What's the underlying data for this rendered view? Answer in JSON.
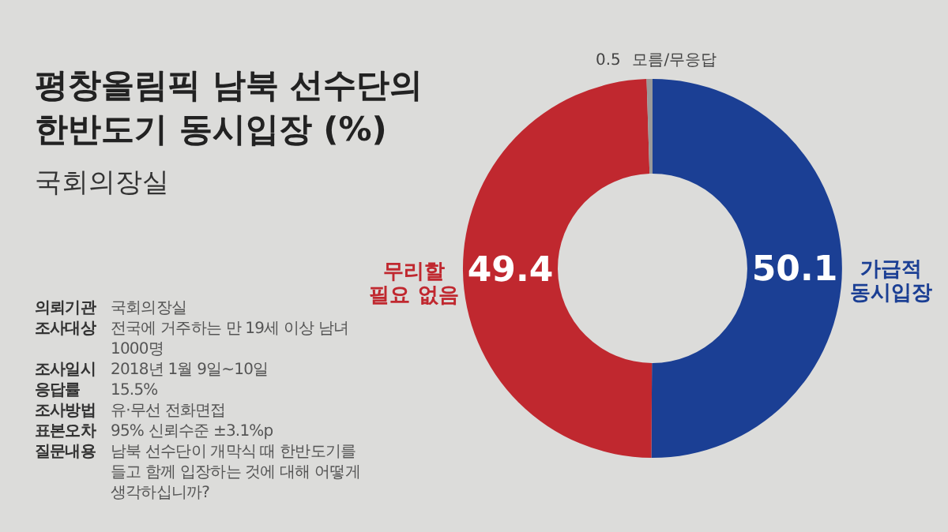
{
  "chart_data": {
    "type": "donut",
    "title": "평창올림픽 남북 선수단의 한반도기 동시입장 (%)",
    "subtitle": "국회의장실",
    "categories": [
      "가급적\n동시입장",
      "무리할\n필요 없음",
      "모름/무응답"
    ],
    "values": [
      50.1,
      49.4,
      0.5
    ],
    "colors": [
      "#1b3f94",
      "#c0282f",
      "#9a9a9a"
    ],
    "data_labels": true,
    "annotations": [
      "의뢰기관 국회의장실",
      "조사대상 전국에 거주하는 만 19세 이상 남녀 1000명",
      "조사일시 2018년 1월 9일~10일",
      "응답률 15.5%",
      "조사방법 유·무선 전화면접",
      "표본오차 95% 신뢰수준 ±3.1%p",
      "질문내용 남북 선수단이 개막식 때 한반도기를 들고 함께 입장하는 것에 대해 어떻게 생각하십니까?"
    ]
  }
}
